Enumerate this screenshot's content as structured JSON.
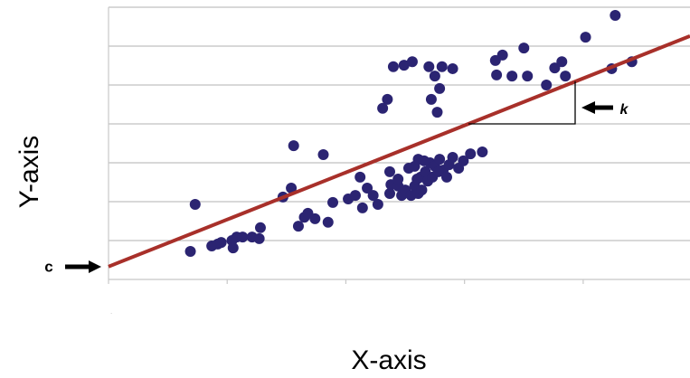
{
  "chart_data": {
    "type": "scatter",
    "xlabel": "X-axis",
    "ylabel": "Y-axis",
    "xlim": [
      0,
      4.9
    ],
    "ylim": [
      0,
      7
    ],
    "xticks": [
      0,
      1,
      2,
      3,
      4
    ],
    "yticks": [
      0,
      1,
      2,
      3,
      4,
      5,
      6,
      7
    ],
    "grid": true,
    "color": "#2b2472",
    "x": [
      4.27,
      4.02,
      3.5,
      3.32,
      3.26,
      3.27,
      3.4,
      3.53,
      3.76,
      3.82,
      3.85,
      3.69,
      4.24,
      4.41,
      2.4,
      2.49,
      2.56,
      2.7,
      2.81,
      2.9,
      2.75,
      2.79,
      2.72,
      2.77,
      2.35,
      2.31,
      1.56,
      1.81,
      0.73,
      0.69,
      0.87,
      0.92,
      0.95,
      1.04,
      1.08,
      1.13,
      1.05,
      1.21,
      1.28,
      1.27,
      1.47,
      1.54,
      1.6,
      1.65,
      1.68,
      1.74,
      1.85,
      1.89,
      2.02,
      2.08,
      2.14,
      2.18,
      2.23,
      2.27,
      2.37,
      2.38,
      2.44,
      2.47,
      2.5,
      2.55,
      2.58,
      2.61,
      2.63,
      2.67,
      2.71,
      2.75,
      2.79,
      2.82,
      2.87,
      2.9,
      2.95,
      2.99,
      3.05,
      3.15,
      2.58,
      2.61,
      2.66,
      2.69,
      2.73,
      2.78,
      2.85,
      2.44,
      2.53,
      2.6,
      2.64,
      2.37,
      2.12
    ],
    "values": [
      6.79,
      6.23,
      5.95,
      5.77,
      5.63,
      5.26,
      5.23,
      5.23,
      5.44,
      5.6,
      5.23,
      5.0,
      5.42,
      5.6,
      5.47,
      5.51,
      5.6,
      5.47,
      5.47,
      5.42,
      5.23,
      4.91,
      4.63,
      4.3,
      4.63,
      4.4,
      3.44,
      3.21,
      1.93,
      0.72,
      0.86,
      0.91,
      0.95,
      1.0,
      1.09,
      1.09,
      0.81,
      1.09,
      1.33,
      1.05,
      2.12,
      2.35,
      1.37,
      1.6,
      1.7,
      1.56,
      1.47,
      1.98,
      2.07,
      2.16,
      1.84,
      2.35,
      2.16,
      1.93,
      2.77,
      2.44,
      2.4,
      2.16,
      2.3,
      2.16,
      2.4,
      2.21,
      2.63,
      2.77,
      3.0,
      2.91,
      3.09,
      2.81,
      2.95,
      3.14,
      2.86,
      3.05,
      3.23,
      3.28,
      2.91,
      3.09,
      3.05,
      2.53,
      2.63,
      2.77,
      2.63,
      2.58,
      2.86,
      2.58,
      2.3,
      2.21,
      2.63
    ],
    "trend_line": {
      "x": [
        0,
        4.9
      ],
      "values": [
        0.33,
        6.26
      ],
      "color": "#a8302a"
    },
    "annotations": [
      {
        "text": "c"
      },
      {
        "text": "k"
      }
    ]
  }
}
